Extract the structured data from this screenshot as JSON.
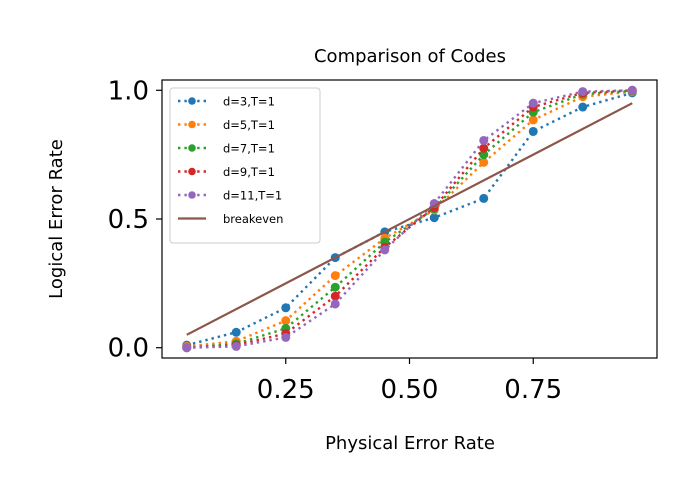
{
  "chart_data": {
    "type": "line",
    "title": "Comparison of Codes",
    "xlabel": "Physical Error Rate",
    "ylabel": "Logical Error Rate",
    "xlim": [
      0.0,
      1.0
    ],
    "ylim": [
      -0.04,
      1.04
    ],
    "xticks": [
      0.25,
      0.5,
      0.75
    ],
    "xtick_labels": [
      "0.25",
      "0.50",
      "0.75"
    ],
    "yticks": [
      0.0,
      0.5,
      1.0
    ],
    "ytick_labels": [
      "0.0",
      "0.5",
      "1.0"
    ],
    "grid": false,
    "legend_position": "upper-left",
    "x": [
      0.05,
      0.15,
      0.25,
      0.35,
      0.45,
      0.55,
      0.65,
      0.75,
      0.85,
      0.95
    ],
    "series": [
      {
        "name": "d=3,T=1",
        "color": "#1f77b4",
        "style": "dotted-marker",
        "values": [
          0.01,
          0.06,
          0.155,
          0.35,
          0.45,
          0.505,
          0.58,
          0.84,
          0.935,
          0.99
        ]
      },
      {
        "name": "d=5,T=1",
        "color": "#ff7f0e",
        "style": "dotted-marker",
        "values": [
          0.005,
          0.025,
          0.105,
          0.28,
          0.425,
          0.535,
          0.72,
          0.885,
          0.975,
          0.995
        ]
      },
      {
        "name": "d=7,T=1",
        "color": "#2ca02c",
        "style": "dotted-marker",
        "values": [
          0.0,
          0.015,
          0.075,
          0.235,
          0.41,
          0.54,
          0.75,
          0.915,
          0.985,
          0.998
        ]
      },
      {
        "name": "d=9,T=1",
        "color": "#d62728",
        "style": "dotted-marker",
        "values": [
          0.0,
          0.01,
          0.055,
          0.2,
          0.39,
          0.545,
          0.775,
          0.935,
          0.99,
          1.0
        ]
      },
      {
        "name": "d=11,T=1",
        "color": "#9467bd",
        "style": "dotted-marker",
        "values": [
          0.0,
          0.005,
          0.04,
          0.17,
          0.38,
          0.56,
          0.805,
          0.95,
          0.995,
          1.0
        ]
      },
      {
        "name": "breakeven",
        "color": "#8c564b",
        "style": "solid",
        "x": [
          0.05,
          0.95
        ],
        "values": [
          0.05,
          0.95
        ]
      }
    ]
  }
}
